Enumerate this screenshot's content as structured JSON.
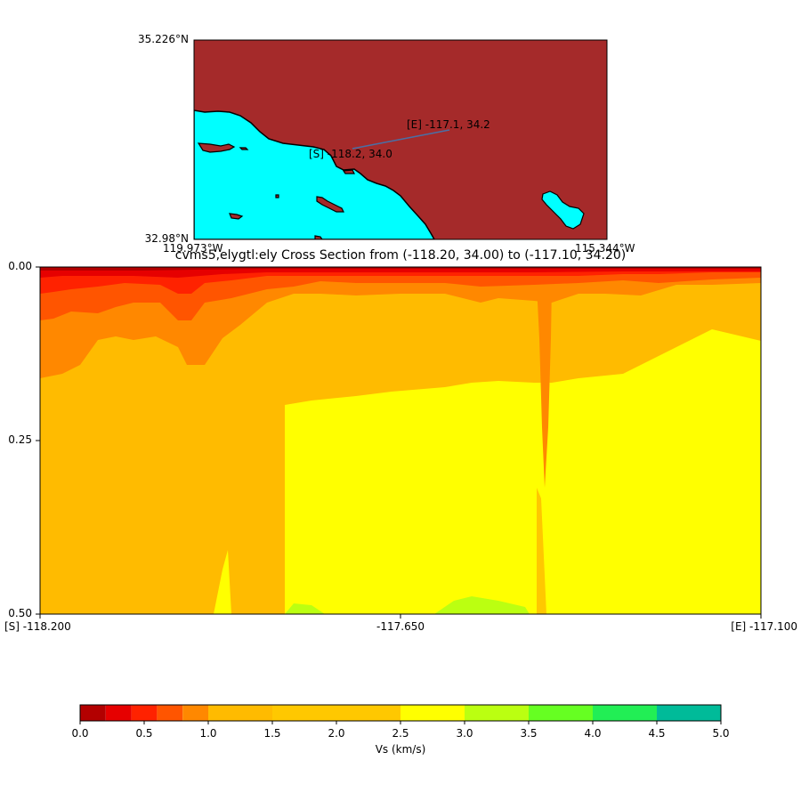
{
  "map": {
    "lat_top": "35.226°N",
    "lat_bottom": "32.98°N",
    "lon_left": "119.973°W",
    "lon_right": "115.344°W",
    "start_label": "[S] -118.2, 34.0",
    "end_label": "[E] -117.1, 34.2",
    "land_color": "#a52a2a",
    "water_color": "#00ffff",
    "path_color": "#4a6fa5"
  },
  "chart_data": {
    "type": "heatmap",
    "title": "cvms5,elygtl:ely Cross Section from (-118.20, 34.00) to (-117.10, 34.20)",
    "x_tick_labels": [
      "[S] -118.200",
      "-117.650",
      "[E] -117.100"
    ],
    "y_tick_labels": [
      "0.00",
      "0.25",
      "0.50"
    ],
    "xlim": [
      -118.2,
      -117.1
    ],
    "ylim": [
      0.5,
      0.0
    ],
    "colorbar": {
      "label": "Vs (km/s)",
      "ticks": [
        "0.0",
        "0.5",
        "1.0",
        "1.5",
        "2.0",
        "2.5",
        "3.0",
        "3.5",
        "4.0",
        "4.5",
        "5.0"
      ],
      "bounds": [
        0.0,
        0.2,
        0.4,
        0.6,
        0.8,
        1.0,
        1.5,
        2.5,
        3.0,
        3.5,
        4.0,
        4.5,
        5.0
      ],
      "colors": [
        "#b30000",
        "#e60000",
        "#ff2200",
        "#ff5500",
        "#ff8800",
        "#ffbb00",
        "#ffc800",
        "#ffff00",
        "#bbff11",
        "#66ff22",
        "#22ee55",
        "#00bb99",
        "#0044ff"
      ]
    }
  }
}
